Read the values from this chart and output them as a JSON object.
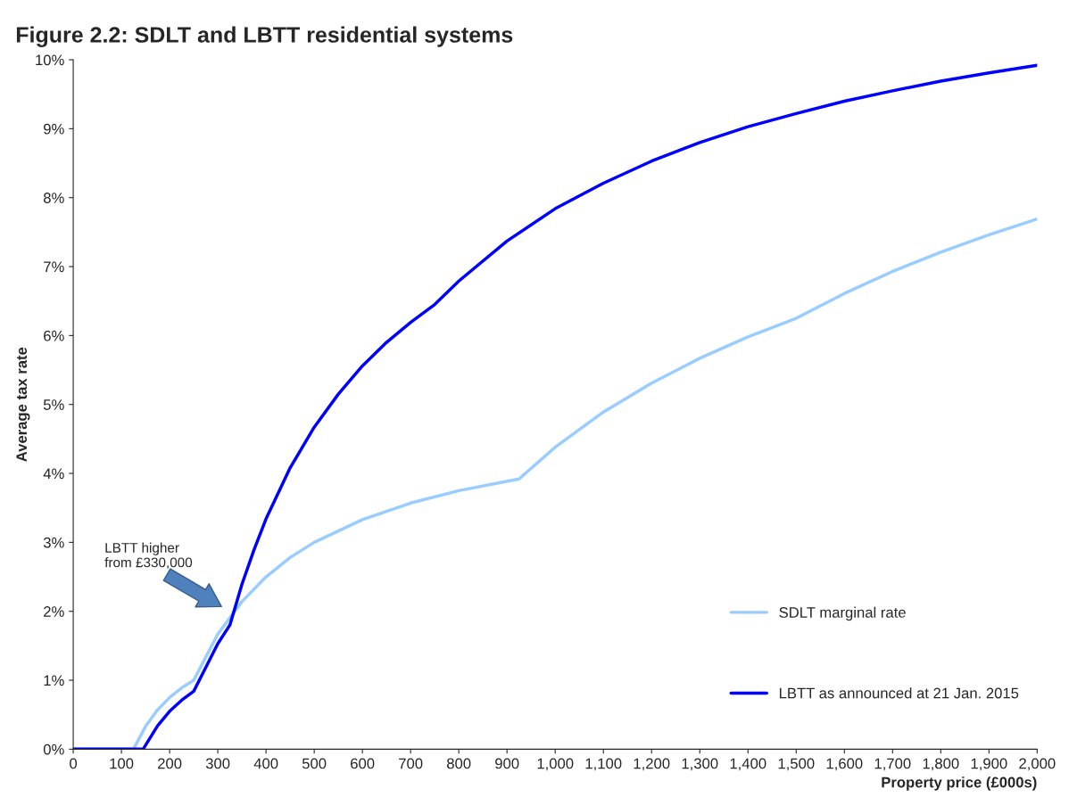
{
  "chart_data": {
    "type": "line",
    "title": "Figure 2.2: SDLT and LBTT residential systems",
    "xlabel": "Property price (£000s)",
    "ylabel": "Average tax rate",
    "series": [
      {
        "name": "SDLT marginal rate",
        "color": "#99ccff",
        "x": [
          0,
          125,
          150,
          175,
          200,
          225,
          250,
          300,
          350,
          400,
          450,
          500,
          600,
          700,
          800,
          925,
          1000,
          1100,
          1200,
          1300,
          1400,
          1500,
          1600,
          1700,
          1800,
          1900,
          2000
        ],
        "values": [
          0,
          0,
          0.33,
          0.57,
          0.75,
          0.89,
          1.0,
          1.67,
          2.14,
          2.5,
          2.78,
          3.0,
          3.33,
          3.57,
          3.75,
          3.92,
          4.38,
          4.89,
          5.31,
          5.67,
          5.98,
          6.25,
          6.61,
          6.93,
          7.21,
          7.46,
          7.69
        ]
      },
      {
        "name": "LBTT as announced at 21 Jan. 2015",
        "color": "#0000ff",
        "x": [
          0,
          145,
          175,
          200,
          225,
          250,
          300,
          325,
          350,
          375,
          400,
          450,
          500,
          550,
          600,
          650,
          700,
          750,
          800,
          900,
          1000,
          1100,
          1200,
          1300,
          1400,
          1500,
          1600,
          1700,
          1800,
          1900,
          2000
        ],
        "values": [
          0,
          0,
          0.34,
          0.55,
          0.71,
          0.84,
          1.53,
          1.8,
          2.39,
          2.89,
          3.34,
          4.08,
          4.67,
          5.15,
          5.56,
          5.9,
          6.19,
          6.45,
          6.79,
          7.37,
          7.84,
          8.21,
          8.53,
          8.8,
          9.03,
          9.22,
          9.4,
          9.55,
          9.69,
          9.81,
          9.92
        ]
      }
    ],
    "xlim": [
      0,
      2000
    ],
    "xticks": [
      0,
      100,
      200,
      300,
      400,
      500,
      600,
      700,
      800,
      900,
      {
        "value": 1000,
        "label": "1,000"
      },
      {
        "value": 1100,
        "label": "1,100"
      },
      {
        "value": 1200,
        "label": "1,200"
      },
      {
        "value": 1300,
        "label": "1,300"
      },
      {
        "value": 1400,
        "label": "1,400"
      },
      {
        "value": 1500,
        "label": "1,500"
      },
      {
        "value": 1600,
        "label": "1,600"
      },
      {
        "value": 1700,
        "label": "1,700"
      },
      {
        "value": 1800,
        "label": "1,800"
      },
      {
        "value": 1900,
        "label": "1,900"
      },
      {
        "value": 2000,
        "label": "2,000"
      }
    ],
    "ylim": [
      0,
      10
    ],
    "yticks": [
      {
        "value": 0,
        "label": "0%"
      },
      {
        "value": 1,
        "label": "1%"
      },
      {
        "value": 2,
        "label": "2%"
      },
      {
        "value": 3,
        "label": "3%"
      },
      {
        "value": 4,
        "label": "4%"
      },
      {
        "value": 5,
        "label": "5%"
      },
      {
        "value": 6,
        "label": "6%"
      },
      {
        "value": 7,
        "label": "7%"
      },
      {
        "value": 8,
        "label": "8%"
      },
      {
        "value": 9,
        "label": "9%"
      },
      {
        "value": 10,
        "label": "10%"
      }
    ],
    "annotations": [
      "LBTT higher\nfrom £330,000"
    ],
    "grid": false,
    "legend": "bottom right",
    "marker": "none",
    "line_style": "solid"
  }
}
